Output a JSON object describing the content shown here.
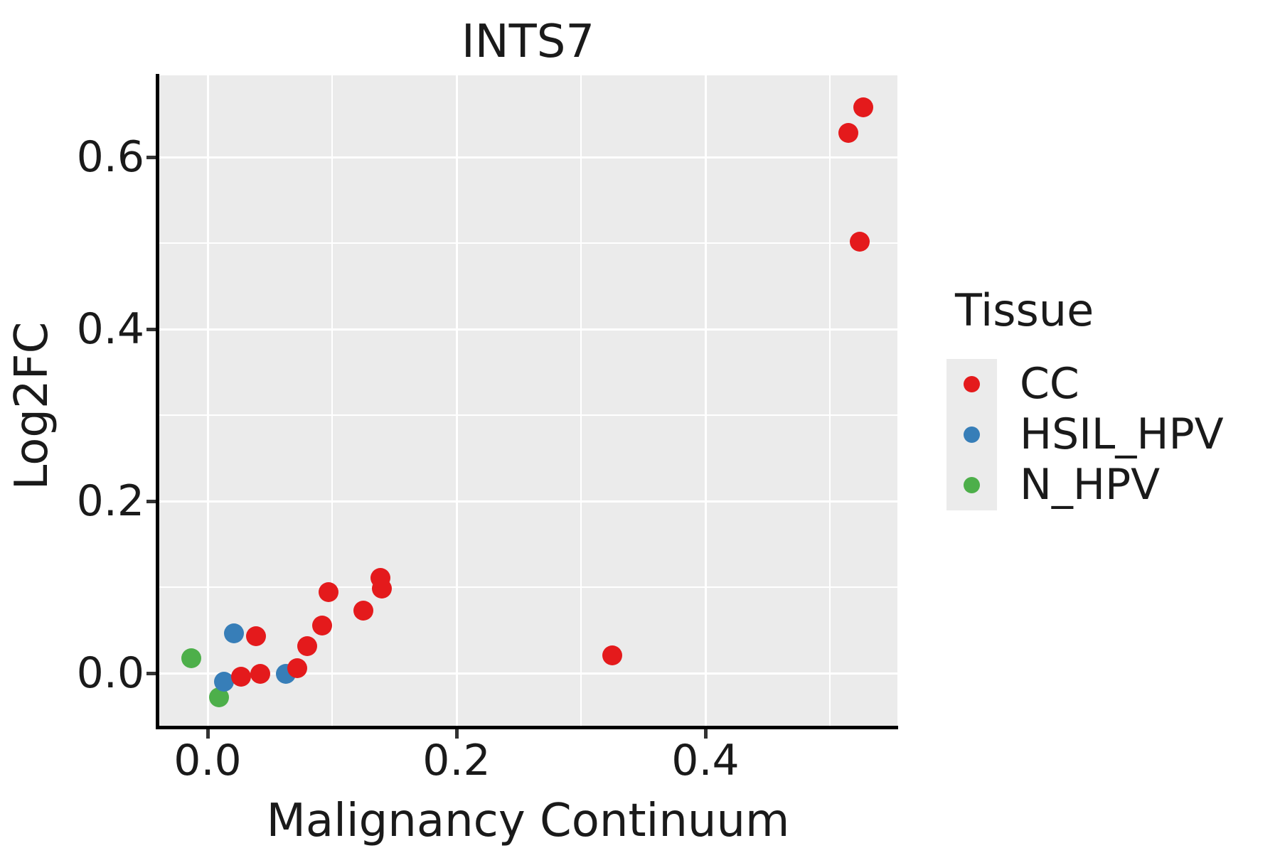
{
  "title": "INTS7",
  "axes": {
    "x": {
      "label": "Malignancy Continuum",
      "tick_labels": [
        "0.0",
        "0.2",
        "0.4"
      ]
    },
    "y": {
      "label": "Log2FC",
      "tick_labels": [
        "0.0",
        "0.2",
        "0.4",
        "0.6"
      ]
    }
  },
  "legend": {
    "title": "Tissue",
    "items": [
      {
        "label": "CC",
        "color": "#E41A1C"
      },
      {
        "label": "HSIL_HPV",
        "color": "#377EB8"
      },
      {
        "label": "N_HPV",
        "color": "#4DAF4A"
      }
    ]
  },
  "colors": {
    "panel_background": "#EBEBEB",
    "gridline": "#FFFFFF",
    "axis_line": "#000000",
    "text": "#1A1A1A"
  },
  "chart_data": {
    "type": "scatter",
    "title": "INTS7",
    "xlabel": "Malignancy Continuum",
    "ylabel": "Log2FC",
    "xlim": [
      -0.039,
      0.554
    ],
    "ylim": [
      -0.061,
      0.695
    ],
    "x_major_ticks": [
      0.0,
      0.2,
      0.4
    ],
    "y_major_ticks": [
      0.0,
      0.2,
      0.4,
      0.6
    ],
    "x_minor_ticks": [
      0.1,
      0.3,
      0.5
    ],
    "y_minor_ticks": [
      0.1,
      0.3,
      0.5
    ],
    "grid": "major-and-minor",
    "legend_position": "right",
    "series": [
      {
        "name": "N_HPV",
        "color": "#4DAF4A",
        "points": [
          [
            -0.013,
            0.017
          ],
          [
            0.009,
            -0.028
          ]
        ]
      },
      {
        "name": "HSIL_HPV",
        "color": "#377EB8",
        "points": [
          [
            0.021,
            0.046
          ],
          [
            0.013,
            -0.01
          ],
          [
            0.063,
            -0.001
          ]
        ]
      },
      {
        "name": "CC",
        "color": "#E41A1C",
        "points": [
          [
            0.027,
            -0.004
          ],
          [
            0.039,
            0.043
          ],
          [
            0.042,
            -0.001
          ],
          [
            0.072,
            0.006
          ],
          [
            0.08,
            0.031
          ],
          [
            0.092,
            0.055
          ],
          [
            0.097,
            0.094
          ],
          [
            0.125,
            0.073
          ],
          [
            0.139,
            0.111
          ],
          [
            0.14,
            0.098
          ],
          [
            0.325,
            0.021
          ],
          [
            0.515,
            0.628
          ],
          [
            0.524,
            0.502
          ],
          [
            0.527,
            0.658
          ]
        ]
      }
    ]
  }
}
